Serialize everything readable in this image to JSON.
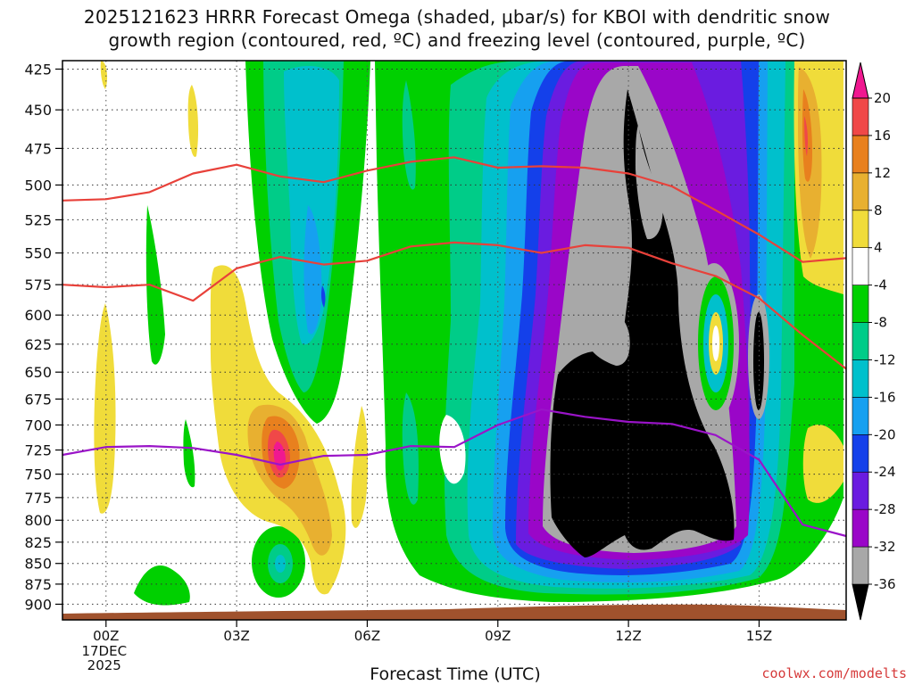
{
  "title_line1": "2025121623 HRRR Forecast Omega (shaded, μbar/s) for KBOI with dendritic snow",
  "title_line2": "growth region (contoured, red, ºC) and freezing level (contoured, purple, ºC)",
  "xlabel": "Forecast Time (UTC)",
  "credit": "coolwx.com/modelts",
  "chart_data": {
    "type": "heatmap",
    "title": "2025121623 HRRR Forecast Omega (shaded, μbar/s) for KBOI with dendritic snow growth region (contoured, red, ºC) and freezing level (contoured, purple, ºC)",
    "xlabel": "Forecast Time (UTC)",
    "ylabel": "",
    "x_ticks": [
      {
        "hour": 1,
        "label": "00Z",
        "sub": [
          "17DEC",
          "2025"
        ]
      },
      {
        "hour": 4,
        "label": "03Z"
      },
      {
        "hour": 7,
        "label": "06Z"
      },
      {
        "hour": 10,
        "label": "09Z"
      },
      {
        "hour": 13,
        "label": "12Z"
      },
      {
        "hour": 16,
        "label": "15Z"
      }
    ],
    "xlim": [
      0,
      18
    ],
    "y_ticks": [
      425,
      450,
      475,
      500,
      525,
      550,
      575,
      600,
      625,
      650,
      675,
      700,
      725,
      750,
      775,
      800,
      825,
      850,
      875,
      900
    ],
    "ylim": [
      420,
      920
    ],
    "y_scale": "log",
    "grid": true,
    "colorbar": {
      "levels": [
        -36,
        -32,
        -28,
        -24,
        -20,
        -16,
        -12,
        -8,
        -4,
        4,
        8,
        12,
        16,
        20
      ],
      "labels": [
        "-36",
        "-32",
        "-28",
        "-24",
        "-20",
        "-16",
        "-12",
        "-8",
        "-4",
        "4",
        "8",
        "12",
        "16",
        "20"
      ],
      "colors": [
        "#000000",
        "#a8a8a8",
        "#9a06c8",
        "#6a1ce0",
        "#1440ea",
        "#16a0f0",
        "#00c0cc",
        "#00cc88",
        "#00d000",
        "#ffffff",
        "#f0dc3a",
        "#e8b030",
        "#e8801e",
        "#f04848",
        "#f01890"
      ]
    },
    "series": [
      {
        "color": "#e8413a",
        "points": [
          [
            0,
            511
          ],
          [
            1,
            510
          ],
          [
            2,
            505
          ],
          [
            3,
            492
          ],
          [
            4,
            486
          ],
          [
            5,
            494
          ],
          [
            6,
            498
          ],
          [
            7,
            490
          ],
          [
            8,
            484
          ],
          [
            9,
            481
          ],
          [
            10,
            488
          ],
          [
            11,
            487
          ],
          [
            12,
            488
          ],
          [
            13,
            492
          ],
          [
            14,
            501
          ],
          [
            15,
            518
          ],
          [
            16,
            536
          ],
          [
            17,
            557
          ],
          [
            18,
            554
          ]
        ]
      },
      {
        "color": "#e8413a",
        "points": [
          [
            0,
            575
          ],
          [
            1,
            577
          ],
          [
            2,
            575
          ],
          [
            3,
            588
          ],
          [
            4,
            562
          ],
          [
            5,
            553
          ],
          [
            6,
            559
          ],
          [
            7,
            556
          ],
          [
            8,
            545
          ],
          [
            9,
            542
          ],
          [
            10,
            544
          ],
          [
            11,
            550
          ],
          [
            12,
            544
          ],
          [
            13,
            546
          ],
          [
            14,
            558
          ],
          [
            15,
            568
          ],
          [
            16,
            586
          ],
          [
            17,
            617
          ],
          [
            18,
            647
          ]
        ]
      },
      {
        "color": "#9a14c8",
        "points": [
          [
            0,
            730
          ],
          [
            1,
            722
          ],
          [
            2,
            721
          ],
          [
            3,
            723
          ],
          [
            4,
            730
          ],
          [
            5,
            740
          ],
          [
            6,
            731
          ],
          [
            7,
            730
          ],
          [
            8,
            721
          ],
          [
            9,
            722
          ],
          [
            10,
            700
          ],
          [
            11,
            685
          ],
          [
            12,
            692
          ],
          [
            13,
            697
          ],
          [
            14,
            699
          ],
          [
            15,
            710
          ],
          [
            16,
            735
          ],
          [
            17,
            805
          ],
          [
            18,
            818
          ]
        ]
      }
    ],
    "annotations": [
      "dendritic snow growth region",
      "freezing level"
    ]
  }
}
